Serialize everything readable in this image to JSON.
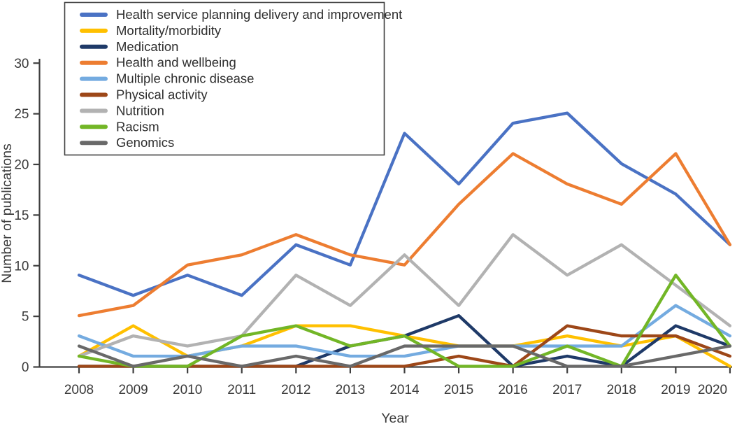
{
  "chart_data": {
    "type": "line",
    "title": "",
    "xlabel": "Year",
    "ylabel": "Number of publications",
    "x": [
      2008,
      2009,
      2010,
      2011,
      2012,
      2013,
      2014,
      2015,
      2016,
      2017,
      2018,
      2019,
      2020
    ],
    "ylim": [
      0,
      30
    ],
    "ytick_step": 5,
    "y_ticks": [
      0,
      5,
      10,
      15,
      20,
      25,
      30
    ],
    "grid": false,
    "legend_position": "top-left",
    "series": [
      {
        "name": "Health service planning delivery and improvement",
        "color": "#4a72c4",
        "values": [
          9,
          7,
          9,
          7,
          12,
          10,
          23,
          18,
          24,
          25,
          20,
          17,
          12
        ]
      },
      {
        "name": "Mortality/morbidity",
        "color": "#ffc000",
        "values": [
          1,
          4,
          1,
          2,
          4,
          4,
          3,
          2,
          2,
          3,
          2,
          3,
          0
        ]
      },
      {
        "name": "Medication",
        "color": "#1f3a68",
        "values": [
          0,
          0,
          0,
          0,
          0,
          2,
          3,
          5,
          0,
          1,
          0,
          4,
          2
        ]
      },
      {
        "name": "Health and wellbeing",
        "color": "#ed7d31",
        "values": [
          5,
          6,
          10,
          11,
          13,
          11,
          10,
          16,
          21,
          18,
          16,
          21,
          12
        ]
      },
      {
        "name": "Multiple chronic disease",
        "color": "#74abe0",
        "values": [
          3,
          1,
          1,
          2,
          2,
          1,
          1,
          2,
          2,
          2,
          2,
          6,
          3
        ]
      },
      {
        "name": "Physical activity",
        "color": "#9d4718",
        "values": [
          0,
          0,
          0,
          0,
          0,
          0,
          0,
          1,
          0,
          4,
          3,
          3,
          1
        ]
      },
      {
        "name": "Nutrition",
        "color": "#b2b2b2",
        "values": [
          1,
          3,
          2,
          3,
          9,
          6,
          11,
          6,
          13,
          9,
          12,
          8,
          4
        ]
      },
      {
        "name": "Racism",
        "color": "#72b626",
        "values": [
          1,
          0,
          0,
          3,
          4,
          2,
          3,
          0,
          0,
          2,
          0,
          9,
          2
        ]
      },
      {
        "name": "Genomics",
        "color": "#696969",
        "values": [
          2,
          0,
          1,
          0,
          1,
          0,
          2,
          2,
          2,
          0,
          0,
          1,
          2
        ]
      }
    ]
  },
  "style": {
    "axis_color": "#3f3f3f",
    "text_color": "#3a3a3a",
    "background": "#ffffff",
    "line_width": 4.3,
    "legend_border_color": "#3f3f3f"
  }
}
